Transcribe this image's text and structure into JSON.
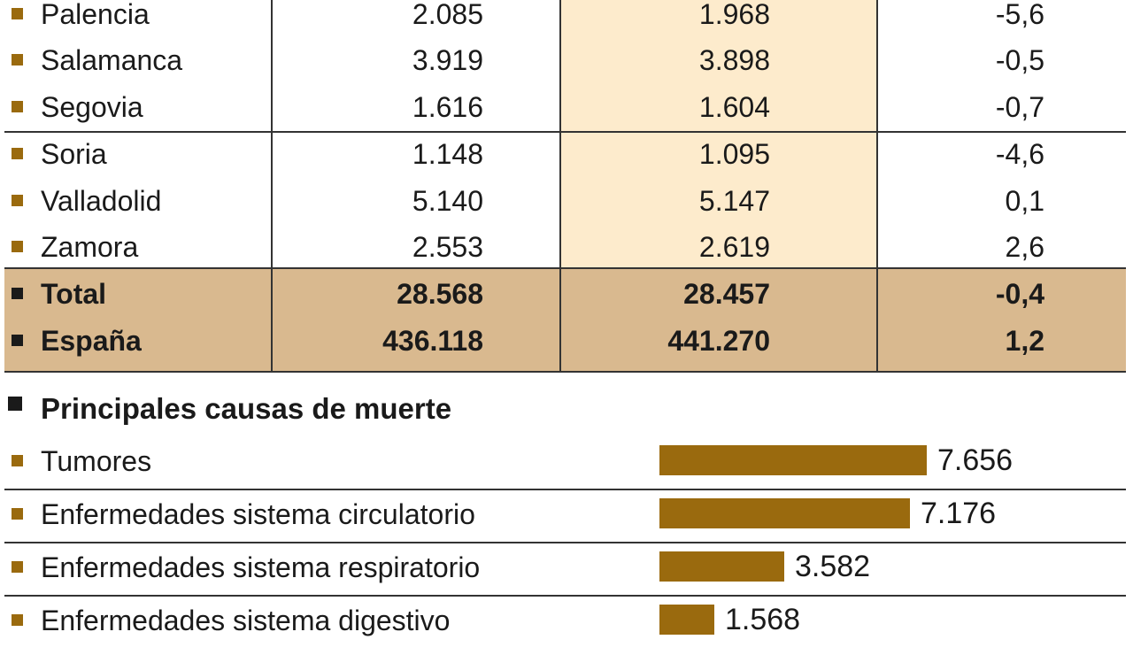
{
  "colors": {
    "accent": "#9a6a0e",
    "highlight_col": "#fdebcc",
    "total_band": "#d9b98f",
    "total_marker": "#1a1a1a"
  },
  "table": {
    "rows": [
      {
        "name": "Palencia",
        "v1": "2.085",
        "v2": "1.968",
        "v3": "-5,6"
      },
      {
        "name": "Salamanca",
        "v1": "3.919",
        "v2": "3.898",
        "v3": "-0,5"
      },
      {
        "name": "Segovia",
        "v1": "1.616",
        "v2": "1.604",
        "v3": "-0,7"
      },
      {
        "name": "Soria",
        "v1": "1.148",
        "v2": "1.095",
        "v3": "-4,6"
      },
      {
        "name": "Valladolid",
        "v1": "5.140",
        "v2": "5.147",
        "v3": "0,1"
      },
      {
        "name": "Zamora",
        "v1": "2.553",
        "v2": "2.619",
        "v3": "2,6"
      }
    ],
    "totals": [
      {
        "name": "Total",
        "v1": "28.568",
        "v2": "28.457",
        "v3": "-0,4"
      },
      {
        "name": "España",
        "v1": "436.118",
        "v2": "441.270",
        "v3": "1,2"
      }
    ]
  },
  "causes_title": "Principales causas de muerte",
  "chart_data": {
    "type": "bar",
    "orientation": "horizontal",
    "title": "Principales causas de muerte",
    "categories": [
      "Tumores",
      "Enfermedades sistema circulatorio",
      "Enfermedades sistema respiratorio",
      "Enfermedades sistema digestivo"
    ],
    "values": [
      7656,
      7176,
      3582,
      1568
    ],
    "value_labels": [
      "7.656",
      "7.176",
      "3.582",
      "1.568"
    ],
    "xlim": [
      0,
      7656
    ],
    "grid": false,
    "legend": "none"
  }
}
